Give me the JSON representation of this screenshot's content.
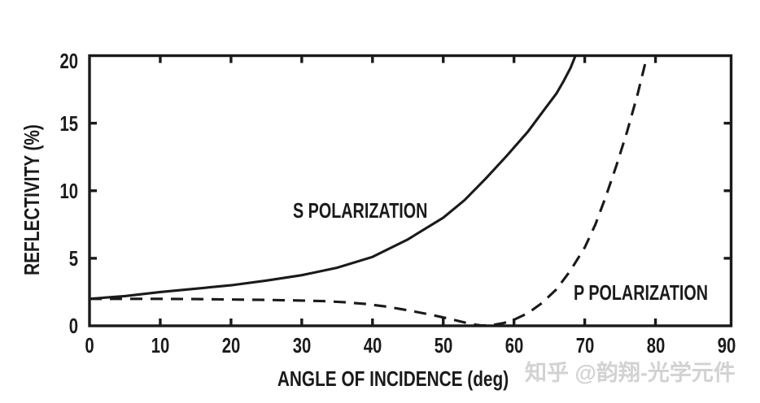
{
  "chart_data": {
    "type": "line",
    "title": "",
    "xlabel": "ANGLE OF INCIDENCE (deg)",
    "ylabel": "REFLECTIVITY (%)",
    "xlim": [
      0,
      90
    ],
    "ylim": [
      0,
      20
    ],
    "grid": false,
    "legend_position": "inline-labels",
    "x_ticks": [
      0,
      10,
      20,
      30,
      40,
      50,
      60,
      70,
      80,
      90
    ],
    "y_ticks": [
      0,
      5,
      10,
      15,
      20
    ],
    "x_tick_labels": [
      "0",
      "10",
      "20",
      "30",
      "40",
      "50",
      "60",
      "70",
      "80",
      "90"
    ],
    "y_tick_labels": [
      "0",
      "5",
      "10",
      "15",
      "20"
    ],
    "series": [
      {
        "name": "S POLARIZATION",
        "line_style": "solid",
        "points": [
          [
            0,
            2.0
          ],
          [
            5,
            2.2
          ],
          [
            10,
            2.5
          ],
          [
            15,
            2.75
          ],
          [
            20,
            3.0
          ],
          [
            25,
            3.35
          ],
          [
            30,
            3.75
          ],
          [
            35,
            4.3
          ],
          [
            40,
            5.1
          ],
          [
            45,
            6.4
          ],
          [
            50,
            8.0
          ],
          [
            53,
            9.3
          ],
          [
            56,
            10.9
          ],
          [
            59,
            12.6
          ],
          [
            62,
            14.4
          ],
          [
            64,
            15.8
          ],
          [
            66,
            17.2
          ],
          [
            67,
            18.1
          ],
          [
            68,
            19.1
          ],
          [
            69,
            20.4
          ]
        ]
      },
      {
        "name": "P POLARIZATION",
        "line_style": "dashed",
        "points": [
          [
            0,
            2.0
          ],
          [
            5,
            2.0
          ],
          [
            10,
            2.0
          ],
          [
            15,
            1.98
          ],
          [
            20,
            1.95
          ],
          [
            25,
            1.92
          ],
          [
            30,
            1.87
          ],
          [
            33,
            1.83
          ],
          [
            36,
            1.75
          ],
          [
            39,
            1.62
          ],
          [
            42,
            1.42
          ],
          [
            45,
            1.15
          ],
          [
            48,
            0.85
          ],
          [
            50,
            0.62
          ],
          [
            52,
            0.38
          ],
          [
            54,
            0.12
          ],
          [
            55.5,
            0.02
          ],
          [
            57,
            0.06
          ],
          [
            58.5,
            0.2
          ],
          [
            60,
            0.45
          ],
          [
            62,
            0.95
          ],
          [
            64,
            1.7
          ],
          [
            66,
            2.7
          ],
          [
            68,
            4.1
          ],
          [
            70,
            5.8
          ],
          [
            71.5,
            7.5
          ],
          [
            73,
            9.6
          ],
          [
            74.5,
            11.9
          ],
          [
            76,
            14.4
          ],
          [
            77.5,
            17.2
          ],
          [
            79,
            20.4
          ]
        ]
      }
    ]
  },
  "watermark": {
    "text": "知乎 @韵翔-光学元件"
  },
  "colors": {
    "line": "#1a1a1a",
    "text": "#1a1a1a",
    "watermark": "#d2d2d2",
    "background": "#ffffff"
  }
}
